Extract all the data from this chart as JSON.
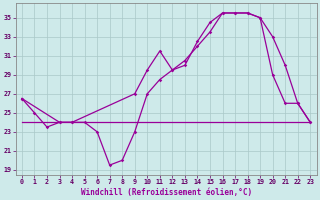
{
  "xlabel": "Windchill (Refroidissement éolien,°C)",
  "bg_color": "#ceeaea",
  "grid_color": "#aac8c8",
  "line_color": "#990099",
  "tick_color": "#660066",
  "xlim": [
    -0.5,
    23.5
  ],
  "ylim": [
    18.5,
    36.5
  ],
  "yticks": [
    19,
    21,
    23,
    25,
    27,
    29,
    31,
    33,
    35
  ],
  "xticks": [
    0,
    1,
    2,
    3,
    4,
    5,
    6,
    7,
    8,
    9,
    10,
    11,
    12,
    13,
    14,
    15,
    16,
    17,
    18,
    19,
    20,
    21,
    22,
    23
  ],
  "line1_x": [
    0,
    1,
    2,
    3,
    4,
    5,
    6,
    7,
    8,
    9,
    10,
    11,
    12,
    13,
    14,
    15,
    16,
    17,
    18,
    19,
    20,
    21,
    22,
    23
  ],
  "line1_y": [
    26.5,
    25.0,
    23.5,
    24.0,
    24.0,
    24.0,
    23.0,
    19.5,
    20.0,
    23.0,
    27.0,
    28.5,
    29.5,
    30.5,
    32.0,
    33.5,
    35.5,
    35.5,
    35.5,
    35.0,
    33.0,
    30.0,
    26.0,
    24.0
  ],
  "line2_x": [
    0,
    3,
    4,
    9,
    10,
    11,
    12,
    13,
    14,
    15,
    16,
    17,
    18,
    19,
    20,
    21,
    22,
    23
  ],
  "line2_y": [
    26.5,
    24.0,
    24.0,
    27.0,
    29.5,
    31.5,
    29.5,
    30.0,
    32.5,
    34.5,
    35.5,
    35.5,
    35.5,
    35.0,
    29.0,
    26.0,
    26.0,
    24.0
  ],
  "line3_x": [
    0,
    23
  ],
  "line3_y": [
    24.0,
    24.0
  ],
  "xlabel_fontsize": 5.5,
  "tick_fontsize": 4.8
}
